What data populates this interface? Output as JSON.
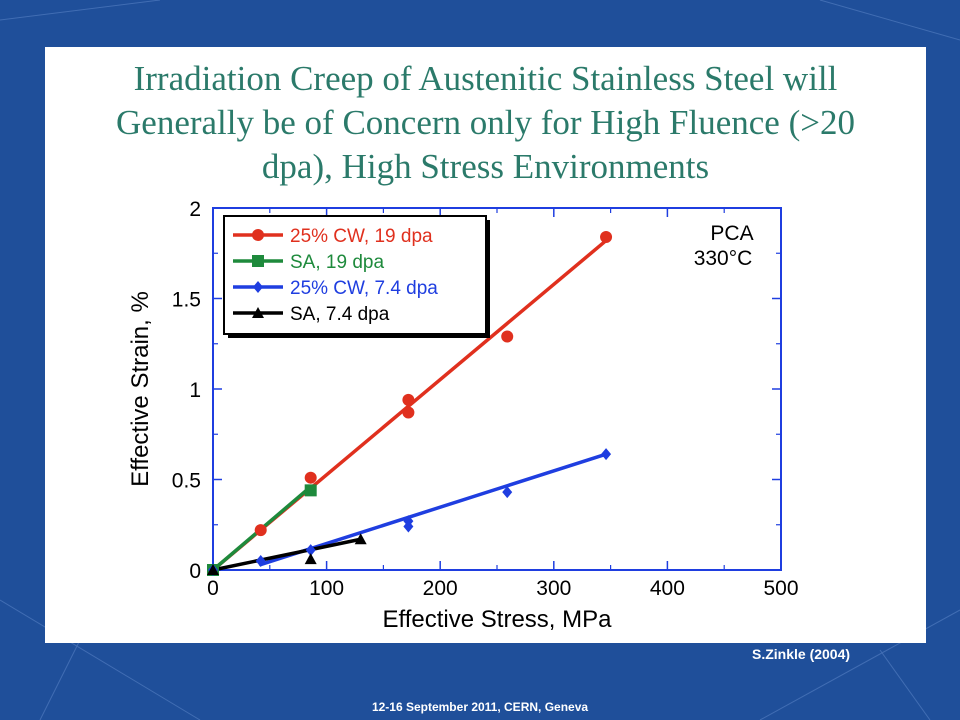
{
  "slide": {
    "title_lines": [
      "Irradiation Creep of Austenitic Stainless Steel will",
      "Generally be of Concern only for High Fluence (>20",
      "dpa), High Stress Environments"
    ],
    "credit": "S.Zinkle (2004)",
    "footer": "12-16  September 2011, CERN, Geneva",
    "colors": {
      "background": "#1f4f9a",
      "panel": "#ffffff",
      "title": "#2b7a6a"
    }
  },
  "chart_data": {
    "type": "scatter",
    "title": "",
    "xlabel": "Effective Stress, MPa",
    "ylabel": "Effective Strain, %",
    "xlim": [
      0,
      500
    ],
    "ylim": [
      0,
      2
    ],
    "xticks": [
      "0",
      "100",
      "200",
      "300",
      "400",
      "500"
    ],
    "yticks": [
      "0",
      "0.5",
      "1",
      "1.5",
      "2"
    ],
    "grid": false,
    "legend_position": "top-left",
    "annotation": [
      "PCA",
      "330°C"
    ],
    "series": [
      {
        "name": "25% CW, 19 dpa",
        "color": "#e0301e",
        "marker": "circle",
        "points": [
          [
            0,
            0
          ],
          [
            42,
            0.22
          ],
          [
            86,
            0.51
          ],
          [
            172,
            0.94
          ],
          [
            172,
            0.87
          ],
          [
            259,
            1.29
          ],
          [
            346,
            1.84
          ]
        ],
        "fit": [
          [
            0,
            0
          ],
          [
            346,
            1.82
          ]
        ]
      },
      {
        "name": "SA, 19 dpa",
        "color": "#1e8a3c",
        "marker": "square",
        "points": [
          [
            0,
            0
          ],
          [
            86,
            0.44
          ]
        ],
        "fit": [
          [
            0,
            0
          ],
          [
            86,
            0.46
          ]
        ]
      },
      {
        "name": "25% CW, 7.4 dpa",
        "color": "#1f3ee0",
        "marker": "diamond",
        "points": [
          [
            0,
            0
          ],
          [
            42,
            0.05
          ],
          [
            86,
            0.11
          ],
          [
            172,
            0.27
          ],
          [
            172,
            0.24
          ],
          [
            259,
            0.43
          ],
          [
            346,
            0.64
          ]
        ],
        "fit": [
          [
            42,
            0.03
          ],
          [
            346,
            0.64
          ]
        ]
      },
      {
        "name": "SA, 7.4 dpa",
        "color": "#000000",
        "marker": "triangle",
        "points": [
          [
            0,
            0
          ],
          [
            86,
            0.06
          ],
          [
            130,
            0.17
          ]
        ],
        "fit": [
          [
            0,
            0
          ],
          [
            130,
            0.17
          ]
        ]
      }
    ]
  }
}
